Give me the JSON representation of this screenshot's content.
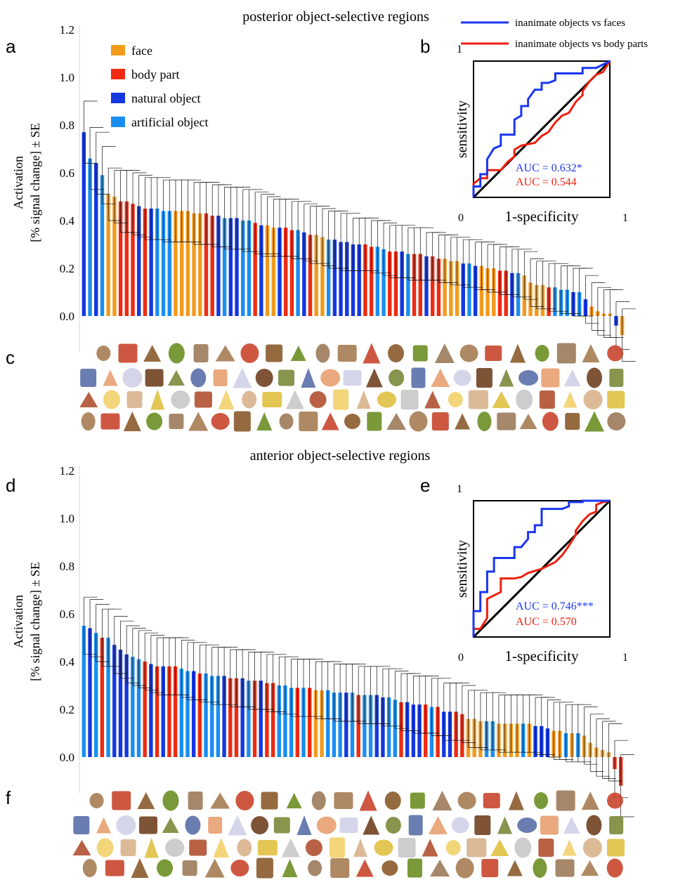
{
  "panel_labels": [
    "a",
    "b",
    "c",
    "d",
    "e",
    "f"
  ],
  "colors": {
    "face": "#f39a1c",
    "body_part": "#ee2b12",
    "natural_object": "#1438e0",
    "artificial_object": "#1a8ef0",
    "roc_faces": "#1a36f0",
    "roc_body": "#ee2010",
    "diagonal": "#000000"
  },
  "legend": {
    "categories": [
      "face",
      "body part",
      "natural object",
      "artificial object"
    ],
    "roc": [
      "inanimate objects vs faces",
      "inanimate objects vs body parts"
    ]
  },
  "stimulus_icons": [
    "flag-icon",
    "elephant-icon",
    "pliers-icon",
    "face-icon",
    "banana-icon",
    "eggplant-icon",
    "carrot-icon",
    "sign-icon",
    "camel-icon",
    "monkey-icon",
    "plant-icon",
    "tree-icon",
    "hand-icon",
    "pear-icon",
    "tomato-icon",
    "kiwi-icon",
    "pinecone-icon",
    "cow-icon",
    "giraffe-icon",
    "zebra-icon",
    "gun-icon",
    "umbrella-icon",
    "phone-icon",
    "hammer-icon",
    "bulb-icon",
    "ear-icon",
    "snake-icon",
    "key-icon",
    "chair-icon",
    "goat-icon"
  ],
  "chart_data": [
    {
      "type": "bar",
      "title": "posterior object-selective regions",
      "ylabel": "Activation\n[% signal change] ± SE",
      "ylim": [
        -0.15,
        1.2
      ],
      "yticks": [
        "1.2",
        "1.0",
        "0.8",
        "0.6",
        "0.4",
        "0.2",
        "0.0"
      ],
      "yticks_values": [
        1.2,
        1.0,
        0.8,
        0.6,
        0.4,
        0.2,
        0.0
      ],
      "legend_position": "top-left",
      "categories_key": [
        "F",
        "B",
        "N",
        "A"
      ],
      "series": [
        {
          "cat": [
            "N",
            "A",
            "N",
            "A",
            "F",
            "F",
            "B",
            "B",
            "B",
            "N",
            "B",
            "N",
            "A",
            "A",
            "A",
            "F",
            "F",
            "F",
            "F",
            "F",
            "B",
            "B",
            "N",
            "A",
            "N",
            "N",
            "A",
            "A",
            "B",
            "N",
            "F",
            "F",
            "N",
            "B",
            "B",
            "A",
            "N",
            "B",
            "F",
            "F",
            "A",
            "N",
            "N",
            "N",
            "N",
            "N",
            "B",
            "B",
            "A",
            "A",
            "B",
            "B",
            "N",
            "A",
            "B",
            "B",
            "N",
            "B",
            "B",
            "F",
            "F",
            "F",
            "N",
            "A",
            "N",
            "F",
            "F",
            "F",
            "B",
            "B",
            "N",
            "A",
            "F",
            "F",
            "F",
            "F",
            "B",
            "A",
            "A",
            "A",
            "N",
            "A",
            "N",
            "F",
            "F",
            "F",
            "F",
            "N",
            "F"
          ],
          "values": [
            0.77,
            0.66,
            0.64,
            0.59,
            0.51,
            0.5,
            0.48,
            0.48,
            0.47,
            0.46,
            0.45,
            0.45,
            0.45,
            0.44,
            0.44,
            0.44,
            0.44,
            0.44,
            0.43,
            0.43,
            0.43,
            0.42,
            0.42,
            0.41,
            0.41,
            0.41,
            0.4,
            0.4,
            0.39,
            0.38,
            0.38,
            0.37,
            0.37,
            0.37,
            0.36,
            0.36,
            0.35,
            0.34,
            0.34,
            0.33,
            0.32,
            0.32,
            0.31,
            0.31,
            0.3,
            0.3,
            0.3,
            0.29,
            0.29,
            0.28,
            0.27,
            0.27,
            0.27,
            0.26,
            0.26,
            0.26,
            0.25,
            0.25,
            0.24,
            0.24,
            0.23,
            0.23,
            0.22,
            0.22,
            0.21,
            0.21,
            0.2,
            0.2,
            0.19,
            0.19,
            0.18,
            0.18,
            0.17,
            0.14,
            0.13,
            0.13,
            0.12,
            0.12,
            0.11,
            0.11,
            0.1,
            0.1,
            0.07,
            0.04,
            0.02,
            0.01,
            0.01,
            -0.04,
            -0.08
          ],
          "se": [
            0.13,
            0.13,
            0.13,
            0.12,
            0.11,
            0.11,
            0.13,
            0.13,
            0.13,
            0.13,
            0.13,
            0.13,
            0.13,
            0.13,
            0.13,
            0.13,
            0.13,
            0.13,
            0.13,
            0.13,
            0.13,
            0.13,
            0.13,
            0.13,
            0.13,
            0.13,
            0.13,
            0.13,
            0.13,
            0.13,
            0.12,
            0.12,
            0.12,
            0.12,
            0.12,
            0.12,
            0.12,
            0.12,
            0.12,
            0.12,
            0.12,
            0.12,
            0.12,
            0.12,
            0.11,
            0.11,
            0.11,
            0.11,
            0.11,
            0.11,
            0.11,
            0.11,
            0.11,
            0.11,
            0.11,
            0.11,
            0.1,
            0.1,
            0.1,
            0.1,
            0.1,
            0.1,
            0.1,
            0.1,
            0.1,
            0.1,
            0.1,
            0.1,
            0.1,
            0.1,
            0.1,
            0.1,
            0.1,
            0.1,
            0.1,
            0.1,
            0.1,
            0.1,
            0.1,
            0.1,
            0.1,
            0.1,
            0.1,
            0.1,
            0.1,
            0.1,
            0.1,
            0.1,
            0.11
          ]
        }
      ]
    },
    {
      "type": "line",
      "subtype": "roc",
      "xlabel": "1-specificity",
      "ylabel": "sensitivity",
      "xlim": [
        0,
        1
      ],
      "ylim": [
        0,
        1
      ],
      "xtick_labels": [
        "0",
        "1"
      ],
      "ytick_label": "1",
      "series": [
        {
          "name": "inanimate objects vs faces",
          "auc_label": "AUC = 0.632*",
          "x": [
            0,
            0,
            0.05,
            0.05,
            0.1,
            0.1,
            0.15,
            0.2,
            0.2,
            0.3,
            0.3,
            0.35,
            0.35,
            0.4,
            0.4,
            0.45,
            0.5,
            0.5,
            0.55,
            0.6,
            0.6,
            0.7,
            0.8,
            0.8,
            0.9,
            1
          ],
          "y": [
            0,
            0.08,
            0.08,
            0.17,
            0.17,
            0.28,
            0.36,
            0.38,
            0.46,
            0.46,
            0.57,
            0.6,
            0.67,
            0.67,
            0.72,
            0.79,
            0.79,
            0.84,
            0.84,
            0.86,
            0.91,
            0.91,
            0.91,
            0.95,
            0.95,
            1
          ]
        },
        {
          "name": "inanimate objects vs body parts",
          "auc_label": "AUC = 0.544",
          "x": [
            0,
            0,
            0.05,
            0.1,
            0.1,
            0.2,
            0.25,
            0.3,
            0.3,
            0.35,
            0.45,
            0.5,
            0.55,
            0.6,
            0.65,
            0.7,
            0.75,
            0.8,
            0.8,
            0.85,
            0.9,
            0.95,
            1
          ],
          "y": [
            0,
            0.1,
            0.14,
            0.14,
            0.2,
            0.2,
            0.26,
            0.3,
            0.35,
            0.38,
            0.4,
            0.45,
            0.48,
            0.55,
            0.6,
            0.62,
            0.7,
            0.75,
            0.78,
            0.85,
            0.9,
            0.92,
            1
          ]
        }
      ]
    },
    {
      "type": "bar",
      "title": "anterior object-selective regions",
      "ylabel": "Activation\n[% signal change] ± SE",
      "ylim": [
        -0.15,
        1.2
      ],
      "yticks": [
        "1.2",
        "1.0",
        "0.8",
        "0.6",
        "0.4",
        "0.2",
        "0.0"
      ],
      "yticks_values": [
        1.2,
        1.0,
        0.8,
        0.6,
        0.4,
        0.2,
        0.0
      ],
      "series": [
        {
          "cat": [
            "A",
            "N",
            "A",
            "B",
            "A",
            "N",
            "N",
            "N",
            "A",
            "A",
            "B",
            "N",
            "B",
            "N",
            "B",
            "B",
            "A",
            "A",
            "N",
            "B",
            "A",
            "A",
            "A",
            "N",
            "B",
            "B",
            "N",
            "A",
            "B",
            "N",
            "B",
            "B",
            "A",
            "A",
            "A",
            "B",
            "A",
            "B",
            "F",
            "F",
            "A",
            "A",
            "A",
            "N",
            "A",
            "B",
            "A",
            "A",
            "N",
            "N",
            "A",
            "A",
            "B",
            "N",
            "N",
            "N",
            "B",
            "A",
            "B",
            "N",
            "N",
            "B",
            "B",
            "F",
            "F",
            "F",
            "A",
            "A",
            "F",
            "F",
            "F",
            "F",
            "A",
            "F",
            "N",
            "N",
            "N",
            "F",
            "F",
            "A",
            "F",
            "A",
            "F",
            "F",
            "F",
            "F",
            "F",
            "B",
            "B"
          ],
          "values": [
            0.55,
            0.54,
            0.52,
            0.5,
            0.5,
            0.47,
            0.45,
            0.43,
            0.42,
            0.41,
            0.4,
            0.39,
            0.38,
            0.38,
            0.38,
            0.38,
            0.37,
            0.36,
            0.36,
            0.35,
            0.35,
            0.34,
            0.34,
            0.34,
            0.33,
            0.33,
            0.33,
            0.32,
            0.32,
            0.32,
            0.31,
            0.31,
            0.3,
            0.3,
            0.29,
            0.29,
            0.29,
            0.29,
            0.28,
            0.28,
            0.28,
            0.27,
            0.27,
            0.27,
            0.27,
            0.26,
            0.26,
            0.26,
            0.26,
            0.25,
            0.25,
            0.24,
            0.23,
            0.23,
            0.22,
            0.22,
            0.22,
            0.21,
            0.21,
            0.19,
            0.19,
            0.19,
            0.18,
            0.16,
            0.16,
            0.15,
            0.15,
            0.15,
            0.14,
            0.14,
            0.14,
            0.14,
            0.14,
            0.14,
            0.13,
            0.13,
            0.12,
            0.11,
            0.11,
            0.1,
            0.1,
            0.1,
            0.09,
            0.06,
            0.04,
            0.03,
            0.02,
            -0.05,
            -0.12
          ],
          "se": [
            0.12,
            0.12,
            0.12,
            0.12,
            0.12,
            0.12,
            0.12,
            0.12,
            0.12,
            0.12,
            0.12,
            0.12,
            0.12,
            0.12,
            0.12,
            0.12,
            0.12,
            0.12,
            0.12,
            0.12,
            0.12,
            0.12,
            0.12,
            0.12,
            0.12,
            0.12,
            0.12,
            0.12,
            0.12,
            0.12,
            0.12,
            0.12,
            0.12,
            0.12,
            0.12,
            0.12,
            0.12,
            0.12,
            0.12,
            0.12,
            0.12,
            0.12,
            0.12,
            0.12,
            0.12,
            0.12,
            0.12,
            0.12,
            0.12,
            0.12,
            0.12,
            0.12,
            0.12,
            0.12,
            0.12,
            0.12,
            0.12,
            0.12,
            0.12,
            0.12,
            0.12,
            0.12,
            0.12,
            0.12,
            0.12,
            0.12,
            0.12,
            0.12,
            0.12,
            0.12,
            0.12,
            0.12,
            0.12,
            0.12,
            0.12,
            0.12,
            0.12,
            0.12,
            0.12,
            0.12,
            0.12,
            0.12,
            0.12,
            0.12,
            0.12,
            0.12,
            0.12,
            0.12,
            0.13
          ]
        }
      ]
    },
    {
      "type": "line",
      "subtype": "roc",
      "xlabel": "1-specificity",
      "ylabel": "sensitivity",
      "xlim": [
        0,
        1
      ],
      "ylim": [
        0,
        1
      ],
      "xtick_labels": [
        "0",
        "1"
      ],
      "ytick_label": "1",
      "series": [
        {
          "name": "inanimate objects vs faces",
          "auc_label": "AUC = 0.746***",
          "x": [
            0,
            0,
            0.05,
            0.05,
            0.1,
            0.1,
            0.15,
            0.15,
            0.3,
            0.3,
            0.35,
            0.4,
            0.4,
            0.45,
            0.45,
            0.5,
            0.5,
            0.55,
            0.65,
            0.7,
            0.7,
            0.8,
            0.8,
            0.95,
            1
          ],
          "y": [
            0,
            0.19,
            0.19,
            0.33,
            0.33,
            0.48,
            0.48,
            0.58,
            0.58,
            0.66,
            0.66,
            0.72,
            0.77,
            0.77,
            0.82,
            0.82,
            0.94,
            0.94,
            0.94,
            0.96,
            0.99,
            0.99,
            1,
            1,
            1
          ]
        },
        {
          "name": "inanimate objects vs body parts",
          "auc_label": "AUC = 0.570",
          "x": [
            0,
            0,
            0.05,
            0.1,
            0.1,
            0.2,
            0.2,
            0.3,
            0.35,
            0.4,
            0.5,
            0.6,
            0.65,
            0.7,
            0.75,
            0.75,
            0.8,
            0.85,
            0.9,
            0.9,
            0.95,
            1
          ],
          "y": [
            0,
            0.06,
            0.06,
            0.14,
            0.28,
            0.33,
            0.43,
            0.43,
            0.44,
            0.47,
            0.5,
            0.55,
            0.6,
            0.67,
            0.75,
            0.78,
            0.85,
            0.9,
            0.92,
            0.97,
            0.99,
            1
          ]
        }
      ]
    }
  ]
}
